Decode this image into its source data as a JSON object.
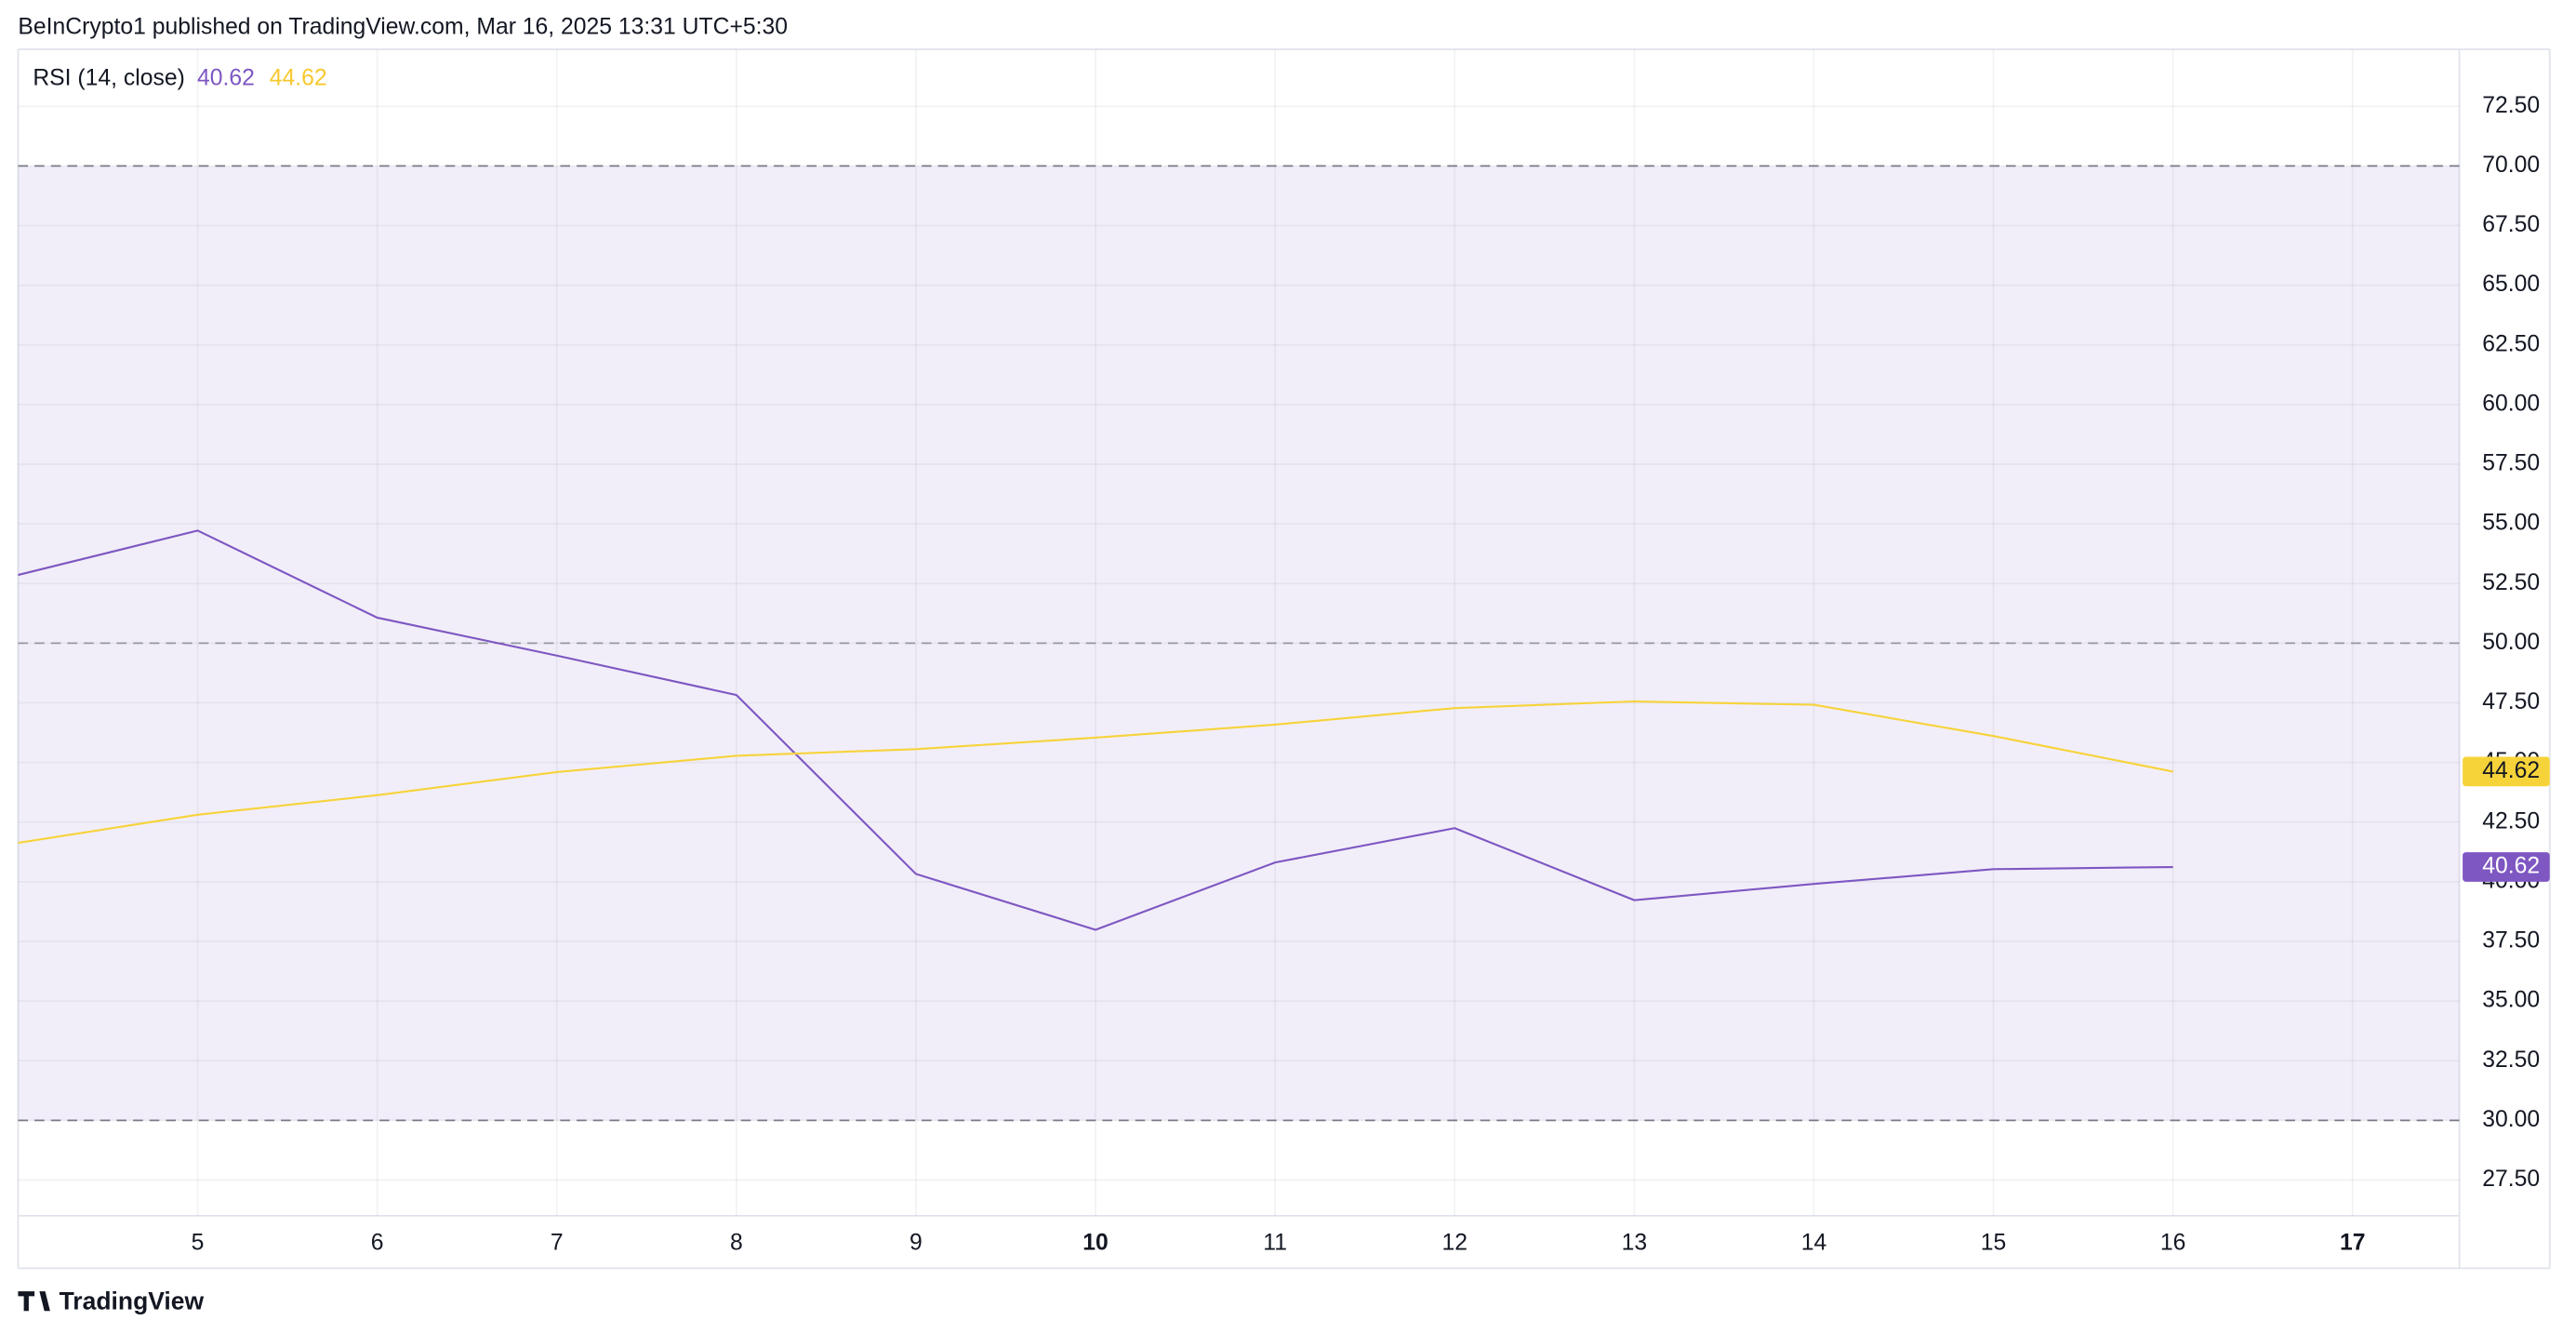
{
  "header": "BeInCrypto1 published on TradingView.com, Mar 16, 2025 13:31 UTC+5:30",
  "footer": "TradingView",
  "chart_data": {
    "type": "line",
    "legend_title": "RSI (14, close)",
    "categories": [
      null,
      "5",
      "6",
      "7",
      "8",
      "9",
      "10",
      "11",
      "12",
      "13",
      "14",
      "15",
      "16",
      "17"
    ],
    "series": [
      {
        "color": "#7e57c2",
        "values": [
          52.86,
          54.72,
          51.07,
          49.48,
          47.83,
          40.33,
          37.99,
          40.81,
          42.25,
          39.23,
          39.91,
          40.53,
          40.62,
          null
        ]
      },
      {
        "color": "#f7d33a",
        "values": [
          41.63,
          42.81,
          43.63,
          44.6,
          45.28,
          45.56,
          46.04,
          46.59,
          47.28,
          47.56,
          47.42,
          46.11,
          44.62,
          null
        ]
      }
    ],
    "ylim": [
      26,
      75
    ],
    "yticks": [
      {
        "value": 27.5,
        "label": "27.50"
      },
      {
        "value": 30,
        "label": "30.00"
      },
      {
        "value": 32.5,
        "label": "32.50"
      },
      {
        "value": 35,
        "label": "35.00"
      },
      {
        "value": 37.5,
        "label": "37.50"
      },
      {
        "value": 40,
        "label": "40.00"
      },
      {
        "value": 42.5,
        "label": "42.50"
      },
      {
        "value": 45,
        "label": "45.00"
      },
      {
        "value": 47.5,
        "label": "47.50"
      },
      {
        "value": 50,
        "label": "50.00"
      },
      {
        "value": 52.5,
        "label": "52.50"
      },
      {
        "value": 55,
        "label": "55.00"
      },
      {
        "value": 57.5,
        "label": "57.50"
      },
      {
        "value": 60,
        "label": "60.00"
      },
      {
        "value": 62.5,
        "label": "62.50"
      },
      {
        "value": 65,
        "label": "65.00"
      },
      {
        "value": 67.5,
        "label": "67.50"
      },
      {
        "value": 70,
        "label": "70.00"
      },
      {
        "value": 72.5,
        "label": "72.50"
      }
    ],
    "band": [
      30,
      70
    ],
    "hlines": [
      30,
      50,
      70
    ],
    "grid": true
  }
}
